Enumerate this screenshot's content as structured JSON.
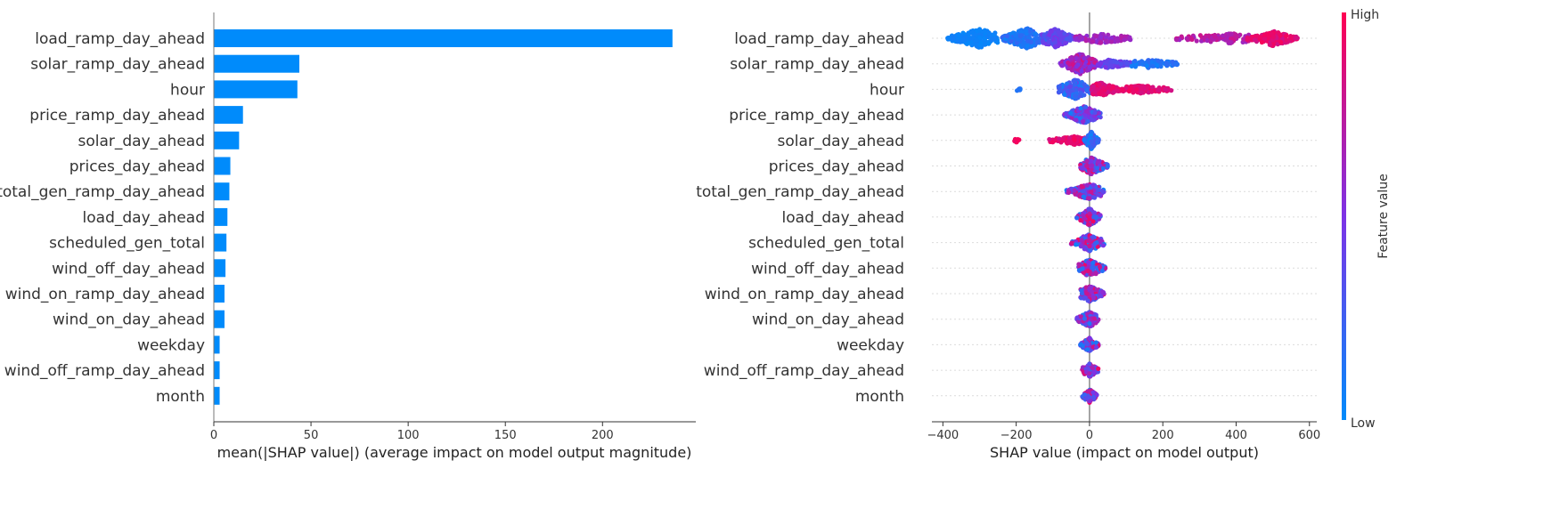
{
  "chart_data": [
    {
      "type": "bar",
      "orientation": "horizontal",
      "categories": [
        "load_ramp_day_ahead",
        "solar_ramp_day_ahead",
        "hour",
        "price_ramp_day_ahead",
        "solar_day_ahead",
        "prices_day_ahead",
        "total_gen_ramp_day_ahead",
        "load_day_ahead",
        "scheduled_gen_total",
        "wind_off_day_ahead",
        "wind_on_ramp_day_ahead",
        "wind_on_day_ahead",
        "weekday",
        "wind_off_ramp_day_ahead",
        "month"
      ],
      "values": [
        236,
        44,
        43,
        15,
        13,
        8.5,
        8,
        7,
        6.5,
        6,
        5.5,
        5.5,
        3,
        3,
        3
      ],
      "xlabel": "mean(|SHAP value|) (average impact on model output magnitude)",
      "xlim": [
        0,
        248
      ],
      "xticks": [
        0,
        50,
        100,
        150,
        200
      ],
      "bar_color": "#008bfb"
    },
    {
      "type": "scatter",
      "subtype": "beeswarm",
      "categories": [
        "load_ramp_day_ahead",
        "solar_ramp_day_ahead",
        "hour",
        "price_ramp_day_ahead",
        "solar_day_ahead",
        "prices_day_ahead",
        "total_gen_ramp_day_ahead",
        "load_day_ahead",
        "scheduled_gen_total",
        "wind_off_day_ahead",
        "wind_on_ramp_day_ahead",
        "wind_on_day_ahead",
        "weekday",
        "wind_off_ramp_day_ahead",
        "month"
      ],
      "xlabel": "SHAP value (impact on model output)",
      "xlim": [
        -430,
        620
      ],
      "xticks": [
        -400,
        -200,
        0,
        200,
        400,
        600
      ],
      "colorbar": {
        "label": "Feature value",
        "high": "High",
        "low": "Low",
        "low_color": "#008bfb",
        "high_color": "#ff0052"
      },
      "features": [
        {
          "segments": [
            {
              "from": -390,
              "to": -250,
              "peak": -300,
              "spread": 9,
              "c0": 0.02,
              "c1": 0.08,
              "n": 190
            },
            {
              "from": -240,
              "to": -120,
              "peak": -170,
              "spread": 10,
              "c0": 0.06,
              "c1": 0.22,
              "n": 210
            },
            {
              "from": -130,
              "to": -40,
              "peak": -95,
              "spread": 9,
              "c0": 0.28,
              "c1": 0.5,
              "n": 150
            },
            {
              "from": -40,
              "to": 115,
              "peak": 30,
              "spread": 4,
              "c0": 0.55,
              "c1": 0.72,
              "n": 95
            },
            {
              "from": 230,
              "to": 440,
              "peak": 380,
              "spread": 4,
              "c0": 0.62,
              "c1": 0.82,
              "n": 120
            },
            {
              "from": 430,
              "to": 570,
              "peak": 500,
              "spread": 7,
              "c0": 0.8,
              "c1": 0.97,
              "n": 150
            }
          ]
        },
        {
          "segments": [
            {
              "from": -80,
              "to": 20,
              "peak": -25,
              "spread": 10,
              "c0": 0.45,
              "c1": 0.85,
              "n": 200
            },
            {
              "from": 20,
              "to": 115,
              "peak": 50,
              "spread": 3,
              "c0": 0.3,
              "c1": 0.5,
              "n": 90
            },
            {
              "from": 110,
              "to": 245,
              "peak": 160,
              "spread": 3,
              "c0": 0.05,
              "c1": 0.2,
              "n": 90
            }
          ]
        },
        {
          "segments": [
            {
              "from": -200,
              "to": -185,
              "peak": -192,
              "spread": 1,
              "c0": 0.12,
              "c1": 0.2,
              "n": 6
            },
            {
              "from": -85,
              "to": 15,
              "peak": -40,
              "spread": 10,
              "c0": 0.05,
              "c1": 0.4,
              "n": 180
            },
            {
              "from": 5,
              "to": 90,
              "peak": 30,
              "spread": 6,
              "c0": 0.8,
              "c1": 0.97,
              "n": 150
            },
            {
              "from": 90,
              "to": 230,
              "peak": 140,
              "spread": 3,
              "c0": 0.82,
              "c1": 0.97,
              "n": 110
            }
          ]
        },
        {
          "segments": [
            {
              "from": -70,
              "to": 30,
              "peak": -15,
              "spread": 8,
              "c0": 0.05,
              "c1": 0.7,
              "n": 170
            }
          ]
        },
        {
          "segments": [
            {
              "from": -210,
              "to": -190,
              "peak": -200,
              "spread": 1,
              "c0": 0.92,
              "c1": 0.98,
              "n": 8
            },
            {
              "from": -110,
              "to": -5,
              "peak": -40,
              "spread": 3,
              "c0": 0.82,
              "c1": 0.97,
              "n": 90
            },
            {
              "from": -15,
              "to": 25,
              "peak": 5,
              "spread": 8,
              "c0": 0.03,
              "c1": 0.35,
              "n": 140
            }
          ]
        },
        {
          "segments": [
            {
              "from": -25,
              "to": 50,
              "peak": 5,
              "spread": 8,
              "c0": 0.1,
              "c1": 0.95,
              "n": 150
            }
          ]
        },
        {
          "segments": [
            {
              "from": -65,
              "to": 40,
              "peak": 0,
              "spread": 7,
              "c0": 0.05,
              "c1": 0.95,
              "n": 150
            }
          ]
        },
        {
          "segments": [
            {
              "from": -35,
              "to": 35,
              "peak": 0,
              "spread": 8,
              "c0": 0.1,
              "c1": 0.95,
              "n": 150
            }
          ]
        },
        {
          "segments": [
            {
              "from": -50,
              "to": 40,
              "peak": 0,
              "spread": 8,
              "c0": 0.05,
              "c1": 0.95,
              "n": 150
            }
          ]
        },
        {
          "segments": [
            {
              "from": -30,
              "to": 45,
              "peak": 0,
              "spread": 8,
              "c0": 0.1,
              "c1": 0.95,
              "n": 150
            }
          ]
        },
        {
          "segments": [
            {
              "from": -25,
              "to": 40,
              "peak": 0,
              "spread": 8,
              "c0": 0.2,
              "c1": 0.97,
              "n": 150
            }
          ]
        },
        {
          "segments": [
            {
              "from": -35,
              "to": 25,
              "peak": 0,
              "spread": 7,
              "c0": 0.1,
              "c1": 0.8,
              "n": 140
            }
          ]
        },
        {
          "segments": [
            {
              "from": -25,
              "to": 25,
              "peak": 0,
              "spread": 6,
              "c0": 0.05,
              "c1": 0.95,
              "n": 120
            }
          ]
        },
        {
          "segments": [
            {
              "from": -20,
              "to": 25,
              "peak": 0,
              "spread": 6,
              "c0": 0.1,
              "c1": 0.95,
              "n": 110
            }
          ]
        },
        {
          "segments": [
            {
              "from": -20,
              "to": 20,
              "peak": 0,
              "spread": 6,
              "c0": 0.1,
              "c1": 0.95,
              "n": 110
            }
          ]
        }
      ]
    }
  ]
}
